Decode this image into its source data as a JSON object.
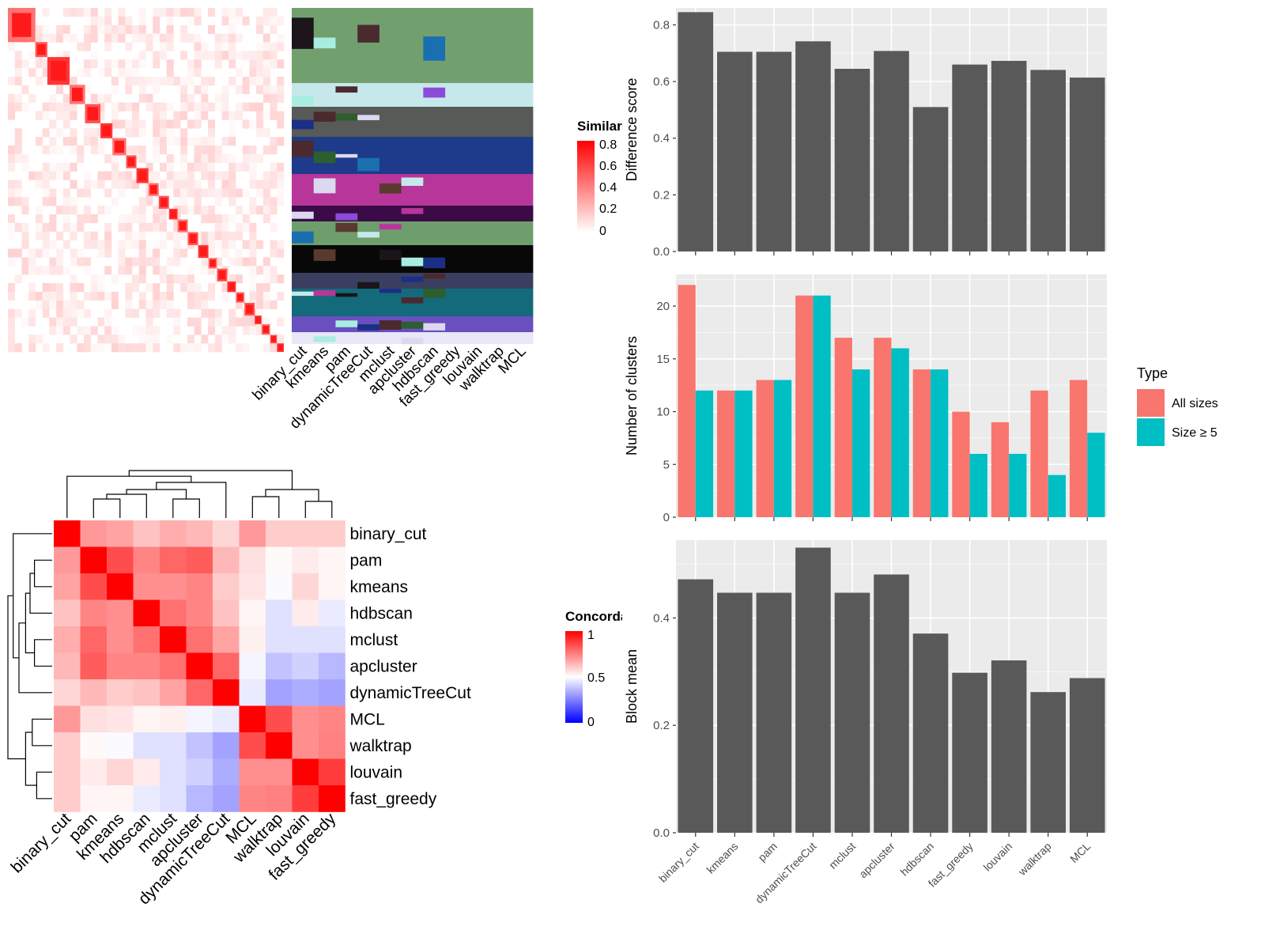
{
  "chart_data": [
    {
      "type": "heatmap",
      "id": "similarity",
      "legend_title": "Similarity",
      "legend_ticks": [
        "0.8",
        "0.6",
        "0.4",
        "0.2",
        "0"
      ],
      "colors": {
        "low": "#ffffff",
        "high": "#ff0000"
      },
      "blocks": [
        0.08,
        0.035,
        0.065,
        0.045,
        0.045,
        0.035,
        0.04,
        0.03,
        0.035,
        0.03,
        0.03,
        0.025,
        0.03,
        0.03,
        0.03,
        0.025,
        0.03,
        0.025,
        0.025,
        0.03,
        0.02,
        0.025,
        0.02,
        0.02
      ]
    },
    {
      "type": "heatmap",
      "id": "cluster-assignments",
      "columns": [
        "binary_cut",
        "kmeans",
        "pam",
        "dynamicTreeCut",
        "mclust",
        "apcluster",
        "hdbscan",
        "fast_greedy",
        "louvain",
        "walktrap",
        "MCL"
      ]
    },
    {
      "type": "heatmap",
      "id": "concordance",
      "legend_title": "Concordance",
      "legend_ticks": [
        "1",
        "0.5",
        "0"
      ],
      "colors": {
        "low": "#0000ff",
        "mid": "#ffffff",
        "high": "#ff0000"
      },
      "rows": [
        "binary_cut",
        "pam",
        "kmeans",
        "hdbscan",
        "mclust",
        "apcluster",
        "dynamicTreeCut",
        "MCL",
        "walktrap",
        "louvain",
        "fast_greedy"
      ],
      "columns": [
        "binary_cut",
        "pam",
        "kmeans",
        "hdbscan",
        "mclust",
        "apcluster",
        "dynamicTreeCut",
        "MCL",
        "walktrap",
        "louvain",
        "fast_greedy"
      ],
      "values": [
        [
          1.0,
          0.7,
          0.68,
          0.62,
          0.66,
          0.64,
          0.58,
          0.7,
          0.6,
          0.6,
          0.6
        ],
        [
          0.7,
          1.0,
          0.85,
          0.74,
          0.8,
          0.82,
          0.64,
          0.56,
          0.51,
          0.54,
          0.52
        ],
        [
          0.68,
          0.85,
          1.0,
          0.72,
          0.72,
          0.74,
          0.6,
          0.55,
          0.49,
          0.58,
          0.52
        ],
        [
          0.62,
          0.74,
          0.72,
          1.0,
          0.78,
          0.74,
          0.62,
          0.52,
          0.44,
          0.54,
          0.46
        ],
        [
          0.66,
          0.8,
          0.72,
          0.78,
          1.0,
          0.78,
          0.68,
          0.53,
          0.44,
          0.44,
          0.44
        ],
        [
          0.64,
          0.82,
          0.74,
          0.74,
          0.78,
          1.0,
          0.8,
          0.48,
          0.38,
          0.41,
          0.36
        ],
        [
          0.58,
          0.64,
          0.6,
          0.62,
          0.68,
          0.8,
          1.0,
          0.46,
          0.32,
          0.34,
          0.32
        ],
        [
          0.7,
          0.56,
          0.55,
          0.52,
          0.53,
          0.48,
          0.46,
          1.0,
          0.85,
          0.72,
          0.74
        ],
        [
          0.6,
          0.51,
          0.49,
          0.44,
          0.44,
          0.38,
          0.32,
          0.85,
          1.0,
          0.72,
          0.75
        ],
        [
          0.6,
          0.54,
          0.58,
          0.54,
          0.44,
          0.41,
          0.34,
          0.72,
          0.72,
          1.0,
          0.88
        ],
        [
          0.6,
          0.52,
          0.52,
          0.46,
          0.44,
          0.36,
          0.32,
          0.74,
          0.75,
          0.88,
          1.0
        ]
      ]
    },
    {
      "type": "bar",
      "id": "difference-score",
      "ylabel": "Difference score",
      "categories": [
        "binary_cut",
        "kmeans",
        "pam",
        "dynamicTreeCut",
        "mclust",
        "apcluster",
        "hdbscan",
        "fast_greedy",
        "louvain",
        "walktrap",
        "MCL"
      ],
      "values": [
        0.845,
        0.705,
        0.705,
        0.742,
        0.645,
        0.708,
        0.51,
        0.66,
        0.673,
        0.641,
        0.614
      ],
      "ylim": [
        0,
        0.86
      ],
      "yticks": [
        "0.0",
        "0.2",
        "0.4",
        "0.6",
        "0.8"
      ],
      "bar_color": "#595959"
    },
    {
      "type": "bar",
      "id": "number-of-clusters",
      "ylabel": "Number of clusters",
      "categories": [
        "binary_cut",
        "kmeans",
        "pam",
        "dynamicTreeCut",
        "mclust",
        "apcluster",
        "hdbscan",
        "fast_greedy",
        "louvain",
        "walktrap",
        "MCL"
      ],
      "series": [
        {
          "name": "All sizes",
          "color": "#F8766D",
          "values": [
            22,
            12,
            13,
            21,
            17,
            17,
            14,
            10,
            9,
            12,
            13
          ]
        },
        {
          "name": "Size ≥ 5",
          "color": "#00BFC4",
          "values": [
            12,
            12,
            13,
            21,
            14,
            16,
            14,
            6,
            6,
            4,
            8
          ]
        }
      ],
      "ylim": [
        0,
        23
      ],
      "yticks": [
        "0",
        "5",
        "10",
        "15",
        "20"
      ],
      "legend_title": "Type",
      "legend_position": "right"
    },
    {
      "type": "bar",
      "id": "block-mean",
      "ylabel": "Block mean",
      "categories": [
        "binary_cut",
        "kmeans",
        "pam",
        "dynamicTreeCut",
        "mclust",
        "apcluster",
        "hdbscan",
        "fast_greedy",
        "louvain",
        "walktrap",
        "MCL"
      ],
      "values": [
        0.472,
        0.447,
        0.447,
        0.531,
        0.447,
        0.481,
        0.371,
        0.298,
        0.321,
        0.262,
        0.288
      ],
      "ylim": [
        0,
        0.545
      ],
      "yticks": [
        "0.0",
        "0.2",
        "0.4"
      ],
      "bar_color": "#595959"
    }
  ]
}
